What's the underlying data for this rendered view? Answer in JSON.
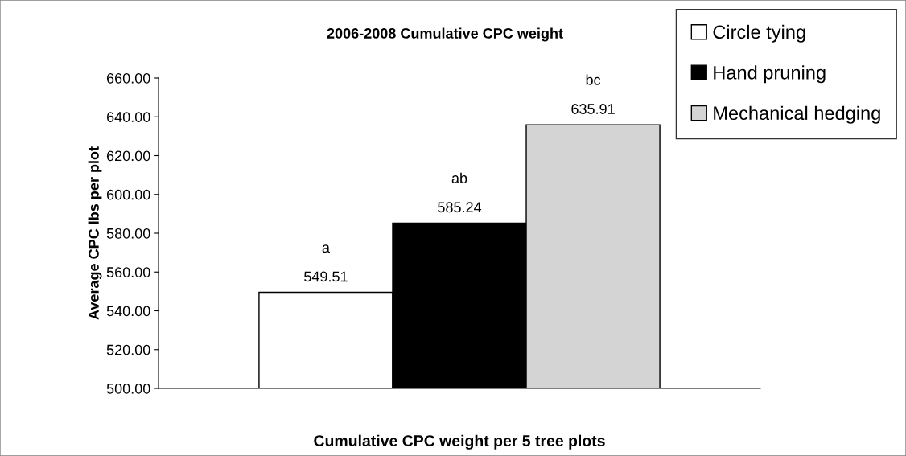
{
  "chart_data": {
    "type": "bar",
    "title": "2006-2008 Cumulative CPC weight",
    "xlabel": "Cumulative CPC weight per 5 tree plots",
    "ylabel": "Average CPC lbs per plot",
    "categories": [
      null
    ],
    "series": [
      {
        "name": "Circle tying",
        "color": "#ffffff",
        "values": [
          549.51
        ]
      },
      {
        "name": "Hand pruning",
        "color": "#000000",
        "values": [
          585.24
        ]
      },
      {
        "name": "Mechanical hedging",
        "color": "#d4d4d4",
        "values": [
          635.91
        ]
      }
    ],
    "ylim": [
      500,
      660
    ],
    "yticks": [
      {
        "value": 500,
        "label": "500.00"
      },
      {
        "value": 520,
        "label": "520.00"
      },
      {
        "value": 540,
        "label": "540.00"
      },
      {
        "value": 560,
        "label": "560.00"
      },
      {
        "value": 580,
        "label": "580.00"
      },
      {
        "value": 600,
        "label": "600.00"
      },
      {
        "value": 620,
        "label": "620.00"
      },
      {
        "value": 640,
        "label": "640.00"
      },
      {
        "value": 660,
        "label": "660.00"
      }
    ],
    "data_labels": true,
    "annotations": [
      "a",
      "ab",
      "bc"
    ],
    "legend": "top right",
    "grid": false
  }
}
